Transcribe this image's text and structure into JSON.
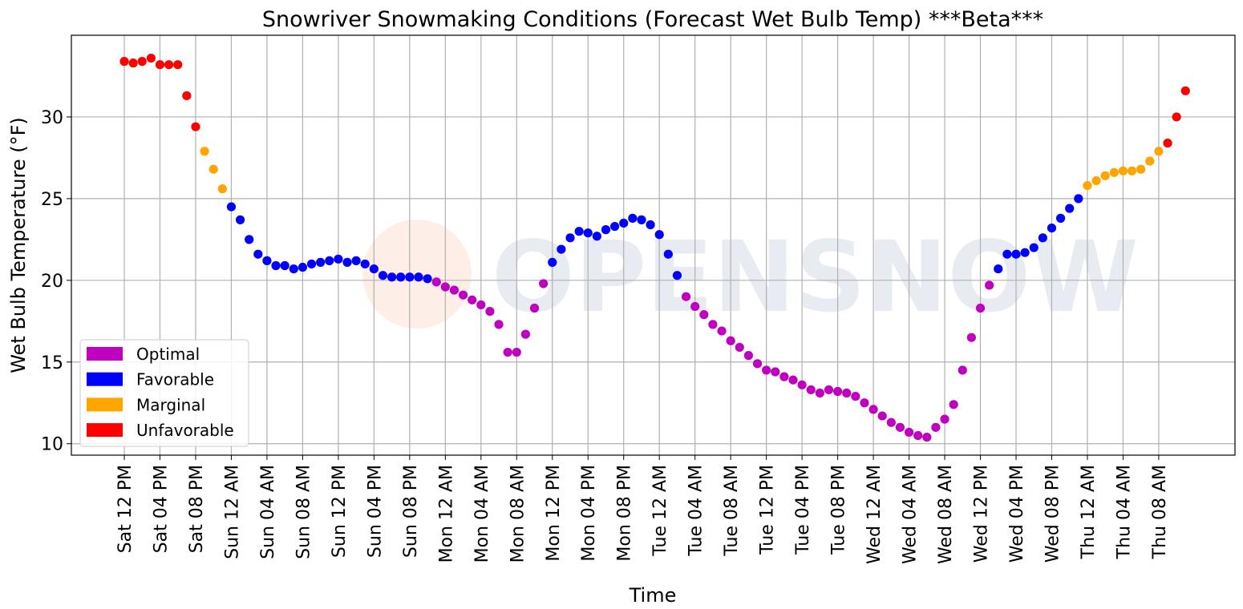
{
  "chart_data": {
    "type": "scatter",
    "title": "Snowriver Snowmaking Conditions (Forecast Wet Bulb Temp) ***Beta***",
    "xlabel": "Time",
    "ylabel": "Wet Bulb Temperature (°F)",
    "x_tick_labels": [
      "Sat 12 PM",
      "Sat 04 PM",
      "Sat 08 PM",
      "Sun 12 AM",
      "Sun 04 AM",
      "Sun 08 AM",
      "Sun 12 PM",
      "Sun 04 PM",
      "Sun 08 PM",
      "Mon 12 AM",
      "Mon 04 AM",
      "Mon 08 AM",
      "Mon 12 PM",
      "Mon 04 PM",
      "Mon 08 PM",
      "Tue 12 AM",
      "Tue 04 AM",
      "Tue 08 AM",
      "Tue 12 PM",
      "Tue 04 PM",
      "Tue 08 PM",
      "Wed 12 AM",
      "Wed 04 AM",
      "Wed 08 AM",
      "Wed 12 PM",
      "Wed 04 PM",
      "Wed 08 PM",
      "Thu 12 AM",
      "Thu 04 AM",
      "Thu 08 AM"
    ],
    "y_ticks": [
      10,
      15,
      20,
      25,
      30
    ],
    "ylim": [
      9.3,
      35.0
    ],
    "grid": true,
    "legend_position": "lower-left",
    "colors": {
      "Optimal": "#bf00bf",
      "Favorable": "#0000ff",
      "Marginal": "#ffa500",
      "Unfavorable": "#ff0000"
    },
    "series": [
      {
        "name": "Unfavorable",
        "values": [
          33.4,
          33.3,
          33.4,
          33.6,
          33.2,
          33.2,
          33.2,
          31.3,
          29.4,
          28.4,
          30.0,
          31.6
        ]
      },
      {
        "name": "Marginal",
        "values": [
          27.9,
          26.8,
          25.6,
          25.8,
          26.1,
          26.4,
          26.6,
          26.7,
          26.7,
          26.8,
          27.3,
          27.9
        ]
      },
      {
        "name": "Favorable",
        "values": [
          24.5,
          23.7,
          22.5,
          21.6,
          21.2,
          20.9,
          20.9,
          20.7,
          20.8,
          21.0,
          21.1,
          21.2,
          21.3,
          21.1,
          21.2,
          21.0,
          20.7,
          20.3,
          20.2,
          20.2,
          20.2,
          20.2,
          20.1,
          21.1,
          21.9,
          22.6,
          23.0,
          22.9,
          22.7,
          23.1,
          23.3,
          23.5,
          23.8,
          23.7,
          23.4,
          22.8,
          21.6,
          20.3,
          20.7,
          21.6,
          21.6,
          21.7,
          22.0,
          22.6,
          23.2,
          23.8,
          24.4,
          25.0
        ]
      },
      {
        "name": "Optimal",
        "values": [
          19.9,
          19.6,
          19.4,
          19.1,
          18.8,
          18.5,
          18.1,
          17.3,
          15.6,
          15.6,
          16.7,
          18.3,
          19.8,
          19.0,
          18.4,
          17.9,
          17.3,
          16.9,
          16.3,
          15.9,
          15.4,
          14.9,
          14.5,
          14.4,
          14.1,
          13.9,
          13.6,
          13.3,
          13.1,
          13.3,
          13.2,
          13.1,
          12.9,
          12.5,
          12.1,
          11.7,
          11.3,
          11.0,
          10.7,
          10.5,
          10.4,
          11.0,
          11.5,
          12.4,
          14.5,
          16.5,
          18.3,
          19.7
        ]
      }
    ],
    "points": [
      [
        "Unfavorable",
        33.4
      ],
      [
        "Unfavorable",
        33.3
      ],
      [
        "Unfavorable",
        33.4
      ],
      [
        "Unfavorable",
        33.6
      ],
      [
        "Unfavorable",
        33.2
      ],
      [
        "Unfavorable",
        33.2
      ],
      [
        "Unfavorable",
        33.2
      ],
      [
        "Unfavorable",
        31.3
      ],
      [
        "Unfavorable",
        29.4
      ],
      [
        "Marginal",
        27.9
      ],
      [
        "Marginal",
        26.8
      ],
      [
        "Marginal",
        25.6
      ],
      [
        "Favorable",
        24.5
      ],
      [
        "Favorable",
        23.7
      ],
      [
        "Favorable",
        22.5
      ],
      [
        "Favorable",
        21.6
      ],
      [
        "Favorable",
        21.2
      ],
      [
        "Favorable",
        20.9
      ],
      [
        "Favorable",
        20.9
      ],
      [
        "Favorable",
        20.7
      ],
      [
        "Favorable",
        20.8
      ],
      [
        "Favorable",
        21.0
      ],
      [
        "Favorable",
        21.1
      ],
      [
        "Favorable",
        21.2
      ],
      [
        "Favorable",
        21.3
      ],
      [
        "Favorable",
        21.1
      ],
      [
        "Favorable",
        21.2
      ],
      [
        "Favorable",
        21.0
      ],
      [
        "Favorable",
        20.7
      ],
      [
        "Favorable",
        20.3
      ],
      [
        "Favorable",
        20.2
      ],
      [
        "Favorable",
        20.2
      ],
      [
        "Favorable",
        20.2
      ],
      [
        "Favorable",
        20.2
      ],
      [
        "Favorable",
        20.1
      ],
      [
        "Optimal",
        19.9
      ],
      [
        "Optimal",
        19.6
      ],
      [
        "Optimal",
        19.4
      ],
      [
        "Optimal",
        19.1
      ],
      [
        "Optimal",
        18.8
      ],
      [
        "Optimal",
        18.5
      ],
      [
        "Optimal",
        18.1
      ],
      [
        "Optimal",
        17.3
      ],
      [
        "Optimal",
        15.6
      ],
      [
        "Optimal",
        15.6
      ],
      [
        "Optimal",
        16.7
      ],
      [
        "Optimal",
        18.3
      ],
      [
        "Optimal",
        19.8
      ],
      [
        "Favorable",
        21.1
      ],
      [
        "Favorable",
        21.9
      ],
      [
        "Favorable",
        22.6
      ],
      [
        "Favorable",
        23.0
      ],
      [
        "Favorable",
        22.9
      ],
      [
        "Favorable",
        22.7
      ],
      [
        "Favorable",
        23.1
      ],
      [
        "Favorable",
        23.3
      ],
      [
        "Favorable",
        23.5
      ],
      [
        "Favorable",
        23.8
      ],
      [
        "Favorable",
        23.7
      ],
      [
        "Favorable",
        23.4
      ],
      [
        "Favorable",
        22.8
      ],
      [
        "Favorable",
        21.6
      ],
      [
        "Favorable",
        20.3
      ],
      [
        "Optimal",
        19.0
      ],
      [
        "Optimal",
        18.4
      ],
      [
        "Optimal",
        17.9
      ],
      [
        "Optimal",
        17.3
      ],
      [
        "Optimal",
        16.9
      ],
      [
        "Optimal",
        16.3
      ],
      [
        "Optimal",
        15.9
      ],
      [
        "Optimal",
        15.4
      ],
      [
        "Optimal",
        14.9
      ],
      [
        "Optimal",
        14.5
      ],
      [
        "Optimal",
        14.4
      ],
      [
        "Optimal",
        14.1
      ],
      [
        "Optimal",
        13.9
      ],
      [
        "Optimal",
        13.6
      ],
      [
        "Optimal",
        13.3
      ],
      [
        "Optimal",
        13.1
      ],
      [
        "Optimal",
        13.3
      ],
      [
        "Optimal",
        13.2
      ],
      [
        "Optimal",
        13.1
      ],
      [
        "Optimal",
        12.9
      ],
      [
        "Optimal",
        12.5
      ],
      [
        "Optimal",
        12.1
      ],
      [
        "Optimal",
        11.7
      ],
      [
        "Optimal",
        11.3
      ],
      [
        "Optimal",
        11.0
      ],
      [
        "Optimal",
        10.7
      ],
      [
        "Optimal",
        10.5
      ],
      [
        "Optimal",
        10.4
      ],
      [
        "Optimal",
        11.0
      ],
      [
        "Optimal",
        11.5
      ],
      [
        "Optimal",
        12.4
      ],
      [
        "Optimal",
        14.5
      ],
      [
        "Optimal",
        16.5
      ],
      [
        "Optimal",
        18.3
      ],
      [
        "Optimal",
        19.7
      ],
      [
        "Favorable",
        20.7
      ],
      [
        "Favorable",
        21.6
      ],
      [
        "Favorable",
        21.6
      ],
      [
        "Favorable",
        21.7
      ],
      [
        "Favorable",
        22.0
      ],
      [
        "Favorable",
        22.6
      ],
      [
        "Favorable",
        23.2
      ],
      [
        "Favorable",
        23.8
      ],
      [
        "Favorable",
        24.4
      ],
      [
        "Favorable",
        25.0
      ],
      [
        "Marginal",
        25.8
      ],
      [
        "Marginal",
        26.1
      ],
      [
        "Marginal",
        26.4
      ],
      [
        "Marginal",
        26.6
      ],
      [
        "Marginal",
        26.7
      ],
      [
        "Marginal",
        26.7
      ],
      [
        "Marginal",
        26.8
      ],
      [
        "Marginal",
        27.3
      ],
      [
        "Marginal",
        27.9
      ],
      [
        "Unfavorable",
        28.4
      ],
      [
        "Unfavorable",
        30.0
      ],
      [
        "Unfavorable",
        31.6
      ]
    ],
    "legend": [
      "Optimal",
      "Favorable",
      "Marginal",
      "Unfavorable"
    ],
    "watermark": "OPENSNOW"
  }
}
